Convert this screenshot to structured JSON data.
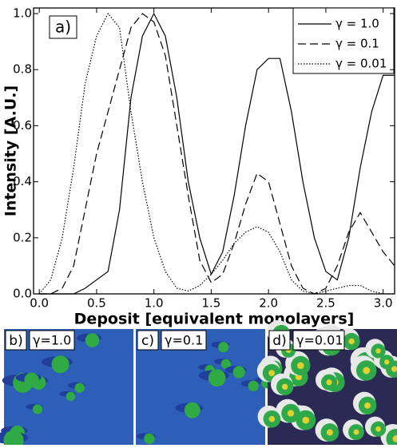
{
  "chart_data": {
    "type": "line",
    "annotation": "a)",
    "xlabel": "Deposit [equivalent monolayers]",
    "ylabel": "Intensity [A.U.]",
    "x": [
      0,
      0.1,
      0.2,
      0.3,
      0.4,
      0.5,
      0.6,
      0.7,
      0.8,
      0.9,
      1.0,
      1.1,
      1.2,
      1.3,
      1.4,
      1.5,
      1.6,
      1.7,
      1.8,
      1.9,
      2.0,
      2.1,
      2.2,
      2.3,
      2.4,
      2.5,
      2.6,
      2.7,
      2.8,
      2.9,
      3.0,
      3.1
    ],
    "series": [
      {
        "name": "γ = 1.0",
        "color": "#000000",
        "linestyle": "solid",
        "values": [
          0,
          0,
          0,
          0,
          0.02,
          0.05,
          0.08,
          0.3,
          0.7,
          0.92,
          1.0,
          0.92,
          0.7,
          0.4,
          0.2,
          0.07,
          0.15,
          0.35,
          0.6,
          0.8,
          0.84,
          0.84,
          0.65,
          0.4,
          0.2,
          0.08,
          0.05,
          0.2,
          0.45,
          0.65,
          0.78,
          0.78
        ]
      },
      {
        "name": "γ = 0.1",
        "color": "#000000",
        "linestyle": "dashed",
        "values": [
          0,
          0,
          0.02,
          0.1,
          0.3,
          0.5,
          0.65,
          0.8,
          0.95,
          1.0,
          0.97,
          0.85,
          0.6,
          0.35,
          0.12,
          0.04,
          0.07,
          0.18,
          0.32,
          0.43,
          0.4,
          0.25,
          0.1,
          0.02,
          0,
          0.02,
          0.1,
          0.22,
          0.29,
          0.22,
          0.15,
          0.1
        ]
      },
      {
        "name": "γ = 0.01",
        "color": "#000000",
        "linestyle": "dotted",
        "values": [
          0,
          0.05,
          0.2,
          0.45,
          0.75,
          0.92,
          1.0,
          0.95,
          0.65,
          0.4,
          0.2,
          0.08,
          0.02,
          0.01,
          0.03,
          0.07,
          0.12,
          0.18,
          0.22,
          0.24,
          0.22,
          0.15,
          0.05,
          0.01,
          0,
          0.01,
          0.02,
          0.03,
          0.03,
          0.01,
          0,
          0
        ]
      }
    ],
    "xlim": [
      -0.05,
      3.1
    ],
    "ylim": [
      0,
      1.02
    ],
    "xticks": [
      {
        "value": 0,
        "label": "0.0"
      },
      0.5,
      {
        "value": 1,
        "label": "1.0"
      },
      1.5,
      {
        "value": 2,
        "label": "2.0"
      },
      2.5,
      {
        "value": 3,
        "label": "3.0"
      }
    ],
    "yticks": [
      {
        "value": 0,
        "label": "0.0"
      },
      0.2,
      0.4,
      0.6,
      0.8,
      {
        "value": 1,
        "label": "1.0"
      }
    ],
    "legend": "upper right",
    "grid": false
  },
  "panels": [
    {
      "label": "b)",
      "caption": "γ=1.0"
    },
    {
      "label": "c)",
      "caption": "γ=0.1"
    },
    {
      "label": "d)",
      "caption": "γ=0.01"
    }
  ]
}
